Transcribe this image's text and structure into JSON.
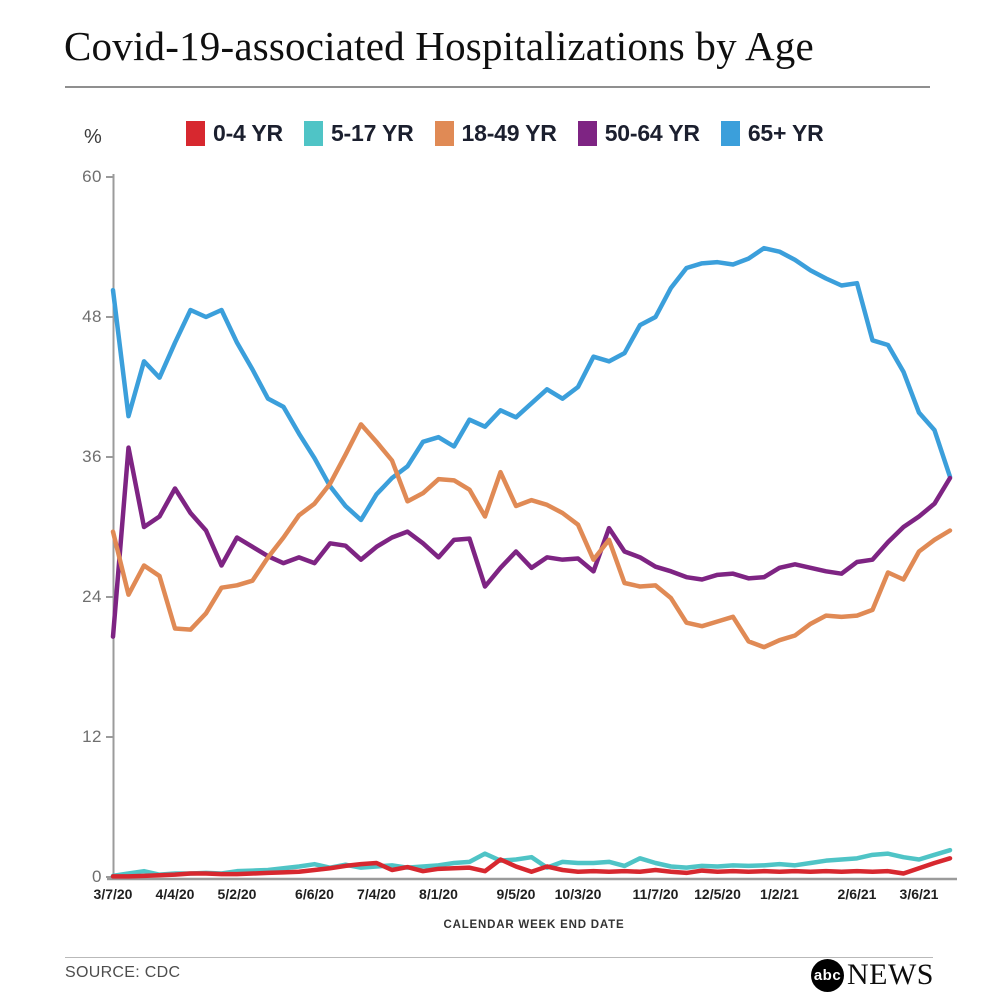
{
  "header": {
    "title": "Covid-19-associated Hospitalizations by Age"
  },
  "legend": [
    {
      "label": "0-4 YR",
      "color": "#d7282f"
    },
    {
      "label": "5-17 YR",
      "color": "#4fc4c6"
    },
    {
      "label": "18-49 YR",
      "color": "#e08a55"
    },
    {
      "label": "50-64 YR",
      "color": "#7e2483"
    },
    {
      "label": "65+ YR",
      "color": "#3b9fdb"
    }
  ],
  "axes": {
    "y_unit_label": "%",
    "yticks": [
      "60",
      "48",
      "36",
      "24",
      "12",
      "0"
    ],
    "x_axis_title": "CALENDAR WEEK END DATE",
    "xticks": [
      "3/7/20",
      "4/4/20",
      "5/2/20",
      "6/6/20",
      "7/4/20",
      "8/1/20",
      "9/5/20",
      "10/3/20",
      "11/7/20",
      "12/5/20",
      "1/2/21",
      "2/6/21",
      "3/6/21"
    ]
  },
  "footer": {
    "source": "SOURCE: CDC",
    "logo_abc": "abc",
    "logo_news": "NEWS"
  },
  "chart_data": {
    "type": "line",
    "title": "Covid-19-associated Hospitalizations by Age",
    "xlabel": "CALENDAR WEEK END DATE",
    "ylabel": "%",
    "ylim": [
      0,
      60
    ],
    "grid": false,
    "legend_position": "top",
    "x": [
      "3/7/20",
      "3/14/20",
      "3/21/20",
      "3/28/20",
      "4/4/20",
      "4/11/20",
      "4/18/20",
      "4/25/20",
      "5/2/20",
      "5/9/20",
      "5/16/20",
      "5/23/20",
      "5/30/20",
      "6/6/20",
      "6/13/20",
      "6/20/20",
      "6/27/20",
      "7/4/20",
      "7/11/20",
      "7/18/20",
      "7/25/20",
      "8/1/20",
      "8/8/20",
      "8/15/20",
      "8/22/20",
      "8/29/20",
      "9/5/20",
      "9/12/20",
      "9/19/20",
      "9/26/20",
      "10/3/20",
      "10/10/20",
      "10/17/20",
      "10/24/20",
      "10/31/20",
      "11/7/20",
      "11/14/20",
      "11/21/20",
      "11/28/20",
      "12/5/20",
      "12/12/20",
      "12/19/20",
      "12/26/20",
      "1/2/21",
      "1/9/21",
      "1/16/21",
      "1/23/21",
      "1/30/21",
      "2/6/21",
      "2/13/21",
      "2/20/21",
      "2/27/21",
      "3/6/21",
      "3/13/21",
      "3/20/21"
    ],
    "series": [
      {
        "name": "0-4 YR",
        "color": "#d7282f",
        "values": [
          0.05,
          0.05,
          0.1,
          0.15,
          0.2,
          0.3,
          0.3,
          0.25,
          0.25,
          0.3,
          0.35,
          0.4,
          0.45,
          0.6,
          0.75,
          0.95,
          1.1,
          1.2,
          0.6,
          0.85,
          0.5,
          0.7,
          0.75,
          0.8,
          0.5,
          1.5,
          0.9,
          0.45,
          0.9,
          0.6,
          0.45,
          0.5,
          0.45,
          0.5,
          0.45,
          0.6,
          0.45,
          0.35,
          0.55,
          0.45,
          0.5,
          0.45,
          0.5,
          0.45,
          0.5,
          0.45,
          0.5,
          0.45,
          0.5,
          0.45,
          0.5,
          0.3,
          0.75,
          1.2,
          1.6
        ]
      },
      {
        "name": "5-17 YR",
        "color": "#4fc4c6",
        "values": [
          0.1,
          0.3,
          0.5,
          0.2,
          0.3,
          0.3,
          0.35,
          0.3,
          0.5,
          0.55,
          0.6,
          0.75,
          0.9,
          1.1,
          0.8,
          1.05,
          0.8,
          0.9,
          1.0,
          0.8,
          0.9,
          1.0,
          1.2,
          1.3,
          2.0,
          1.4,
          1.5,
          1.7,
          0.8,
          1.3,
          1.2,
          1.2,
          1.3,
          0.95,
          1.6,
          1.2,
          0.9,
          0.8,
          0.95,
          0.9,
          1.0,
          0.95,
          1.0,
          1.1,
          1.0,
          1.2,
          1.4,
          1.5,
          1.6,
          1.9,
          2.0,
          1.7,
          1.5,
          1.9,
          2.3
        ]
      },
      {
        "name": "18-49 YR",
        "color": "#e08a55",
        "values": [
          29.6,
          24.2,
          26.7,
          25.8,
          21.3,
          21.2,
          22.6,
          24.8,
          25.0,
          25.4,
          27.4,
          29.1,
          31.0,
          32.0,
          33.7,
          36.2,
          38.8,
          37.3,
          35.7,
          32.2,
          32.9,
          34.1,
          34.0,
          33.2,
          30.9,
          34.7,
          31.8,
          32.3,
          31.9,
          31.2,
          30.2,
          27.2,
          28.9,
          25.2,
          24.9,
          25.0,
          23.9,
          21.8,
          21.5,
          21.9,
          22.3,
          20.2,
          19.7,
          20.3,
          20.7,
          21.7,
          22.4,
          22.3,
          22.4,
          22.9,
          26.1,
          25.5,
          27.9,
          28.9,
          29.7
        ]
      },
      {
        "name": "50-64 YR",
        "color": "#7e2483",
        "values": [
          20.6,
          36.8,
          30.0,
          30.9,
          33.3,
          31.2,
          29.7,
          26.7,
          29.1,
          28.3,
          27.5,
          26.9,
          27.4,
          26.9,
          28.6,
          28.4,
          27.2,
          28.3,
          29.1,
          29.6,
          28.6,
          27.4,
          28.9,
          29.0,
          24.9,
          26.5,
          27.9,
          26.5,
          27.4,
          27.2,
          27.3,
          26.2,
          29.9,
          27.9,
          27.4,
          26.6,
          26.2,
          25.7,
          25.5,
          25.9,
          26.0,
          25.6,
          25.7,
          26.5,
          26.8,
          26.5,
          26.2,
          26.0,
          27.0,
          27.2,
          28.7,
          30.0,
          30.9,
          32.0,
          34.2
        ]
      },
      {
        "name": "65+ YR",
        "color": "#3b9fdb",
        "values": [
          50.3,
          39.5,
          44.2,
          42.8,
          45.8,
          48.6,
          48.0,
          48.6,
          45.8,
          43.5,
          41.0,
          40.3,
          38.0,
          35.9,
          33.5,
          31.8,
          30.6,
          32.8,
          34.2,
          35.2,
          37.3,
          37.7,
          36.9,
          39.2,
          38.6,
          40.0,
          39.4,
          40.6,
          41.8,
          41.0,
          42.0,
          44.6,
          44.2,
          44.9,
          47.3,
          48.0,
          50.5,
          52.2,
          52.6,
          52.7,
          52.5,
          53.0,
          53.9,
          53.6,
          52.9,
          52.0,
          51.3,
          50.7,
          50.9,
          46.0,
          45.6,
          43.3,
          39.8,
          38.3,
          34.3
        ]
      }
    ]
  }
}
